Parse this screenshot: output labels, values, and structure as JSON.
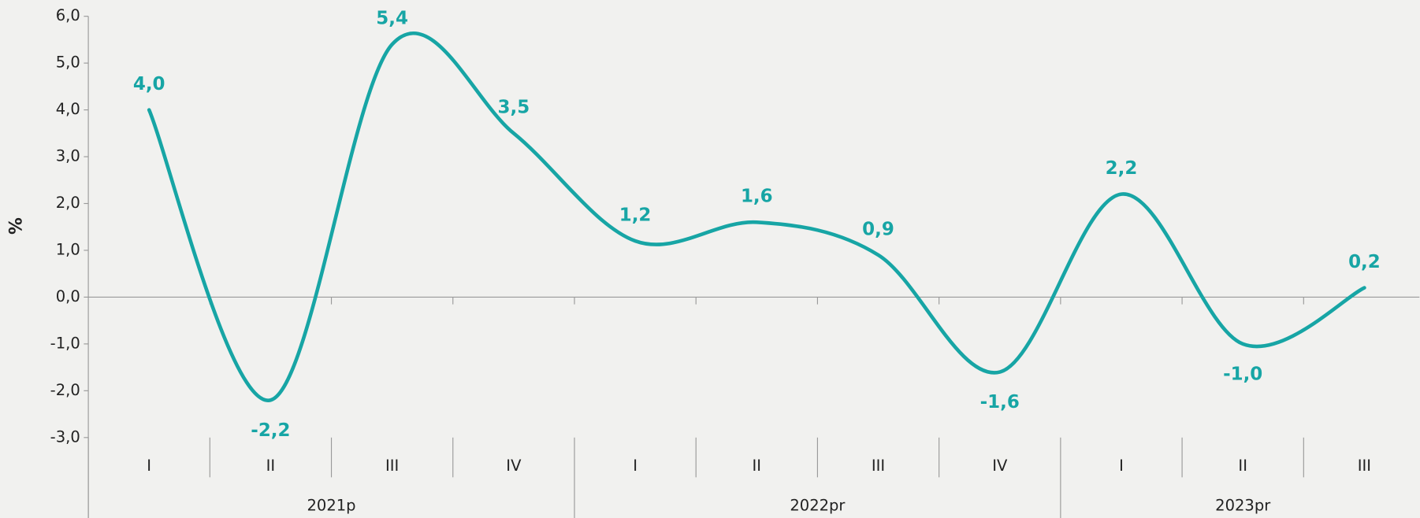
{
  "chart_data": {
    "type": "line",
    "y_label": "%",
    "groups": [
      {
        "name": "2021p",
        "quarters": [
          "I",
          "II",
          "III",
          "IV"
        ]
      },
      {
        "name": "2022pr",
        "quarters": [
          "I",
          "II",
          "III",
          "IV"
        ]
      },
      {
        "name": "2023pr",
        "quarters": [
          "I",
          "II",
          "III"
        ]
      }
    ],
    "series": [
      {
        "color": "#17a5a5",
        "values": [
          4.0,
          -2.2,
          5.4,
          3.5,
          1.2,
          1.6,
          0.9,
          -1.6,
          2.2,
          -1.0,
          0.2
        ],
        "value_labels": [
          "4,0",
          "-2,2",
          "5,4",
          "3,5",
          "1,2",
          "1,6",
          "0,9",
          "-1,6",
          "2,2",
          "-1,0",
          "0,2"
        ]
      }
    ],
    "ylim": [
      -3,
      6
    ],
    "yticks": [
      {
        "value": -3,
        "label": "-3,0"
      },
      {
        "value": -2,
        "label": "-2,0"
      },
      {
        "value": -1,
        "label": "-1,0"
      },
      {
        "value": 0,
        "label": "0,0"
      },
      {
        "value": 1,
        "label": "1,0"
      },
      {
        "value": 2,
        "label": "2,0"
      },
      {
        "value": 3,
        "label": "3,0"
      },
      {
        "value": 4,
        "label": "4,0"
      },
      {
        "value": 5,
        "label": "5,0"
      },
      {
        "value": 6,
        "label": "6,0"
      }
    ],
    "grid": false
  }
}
